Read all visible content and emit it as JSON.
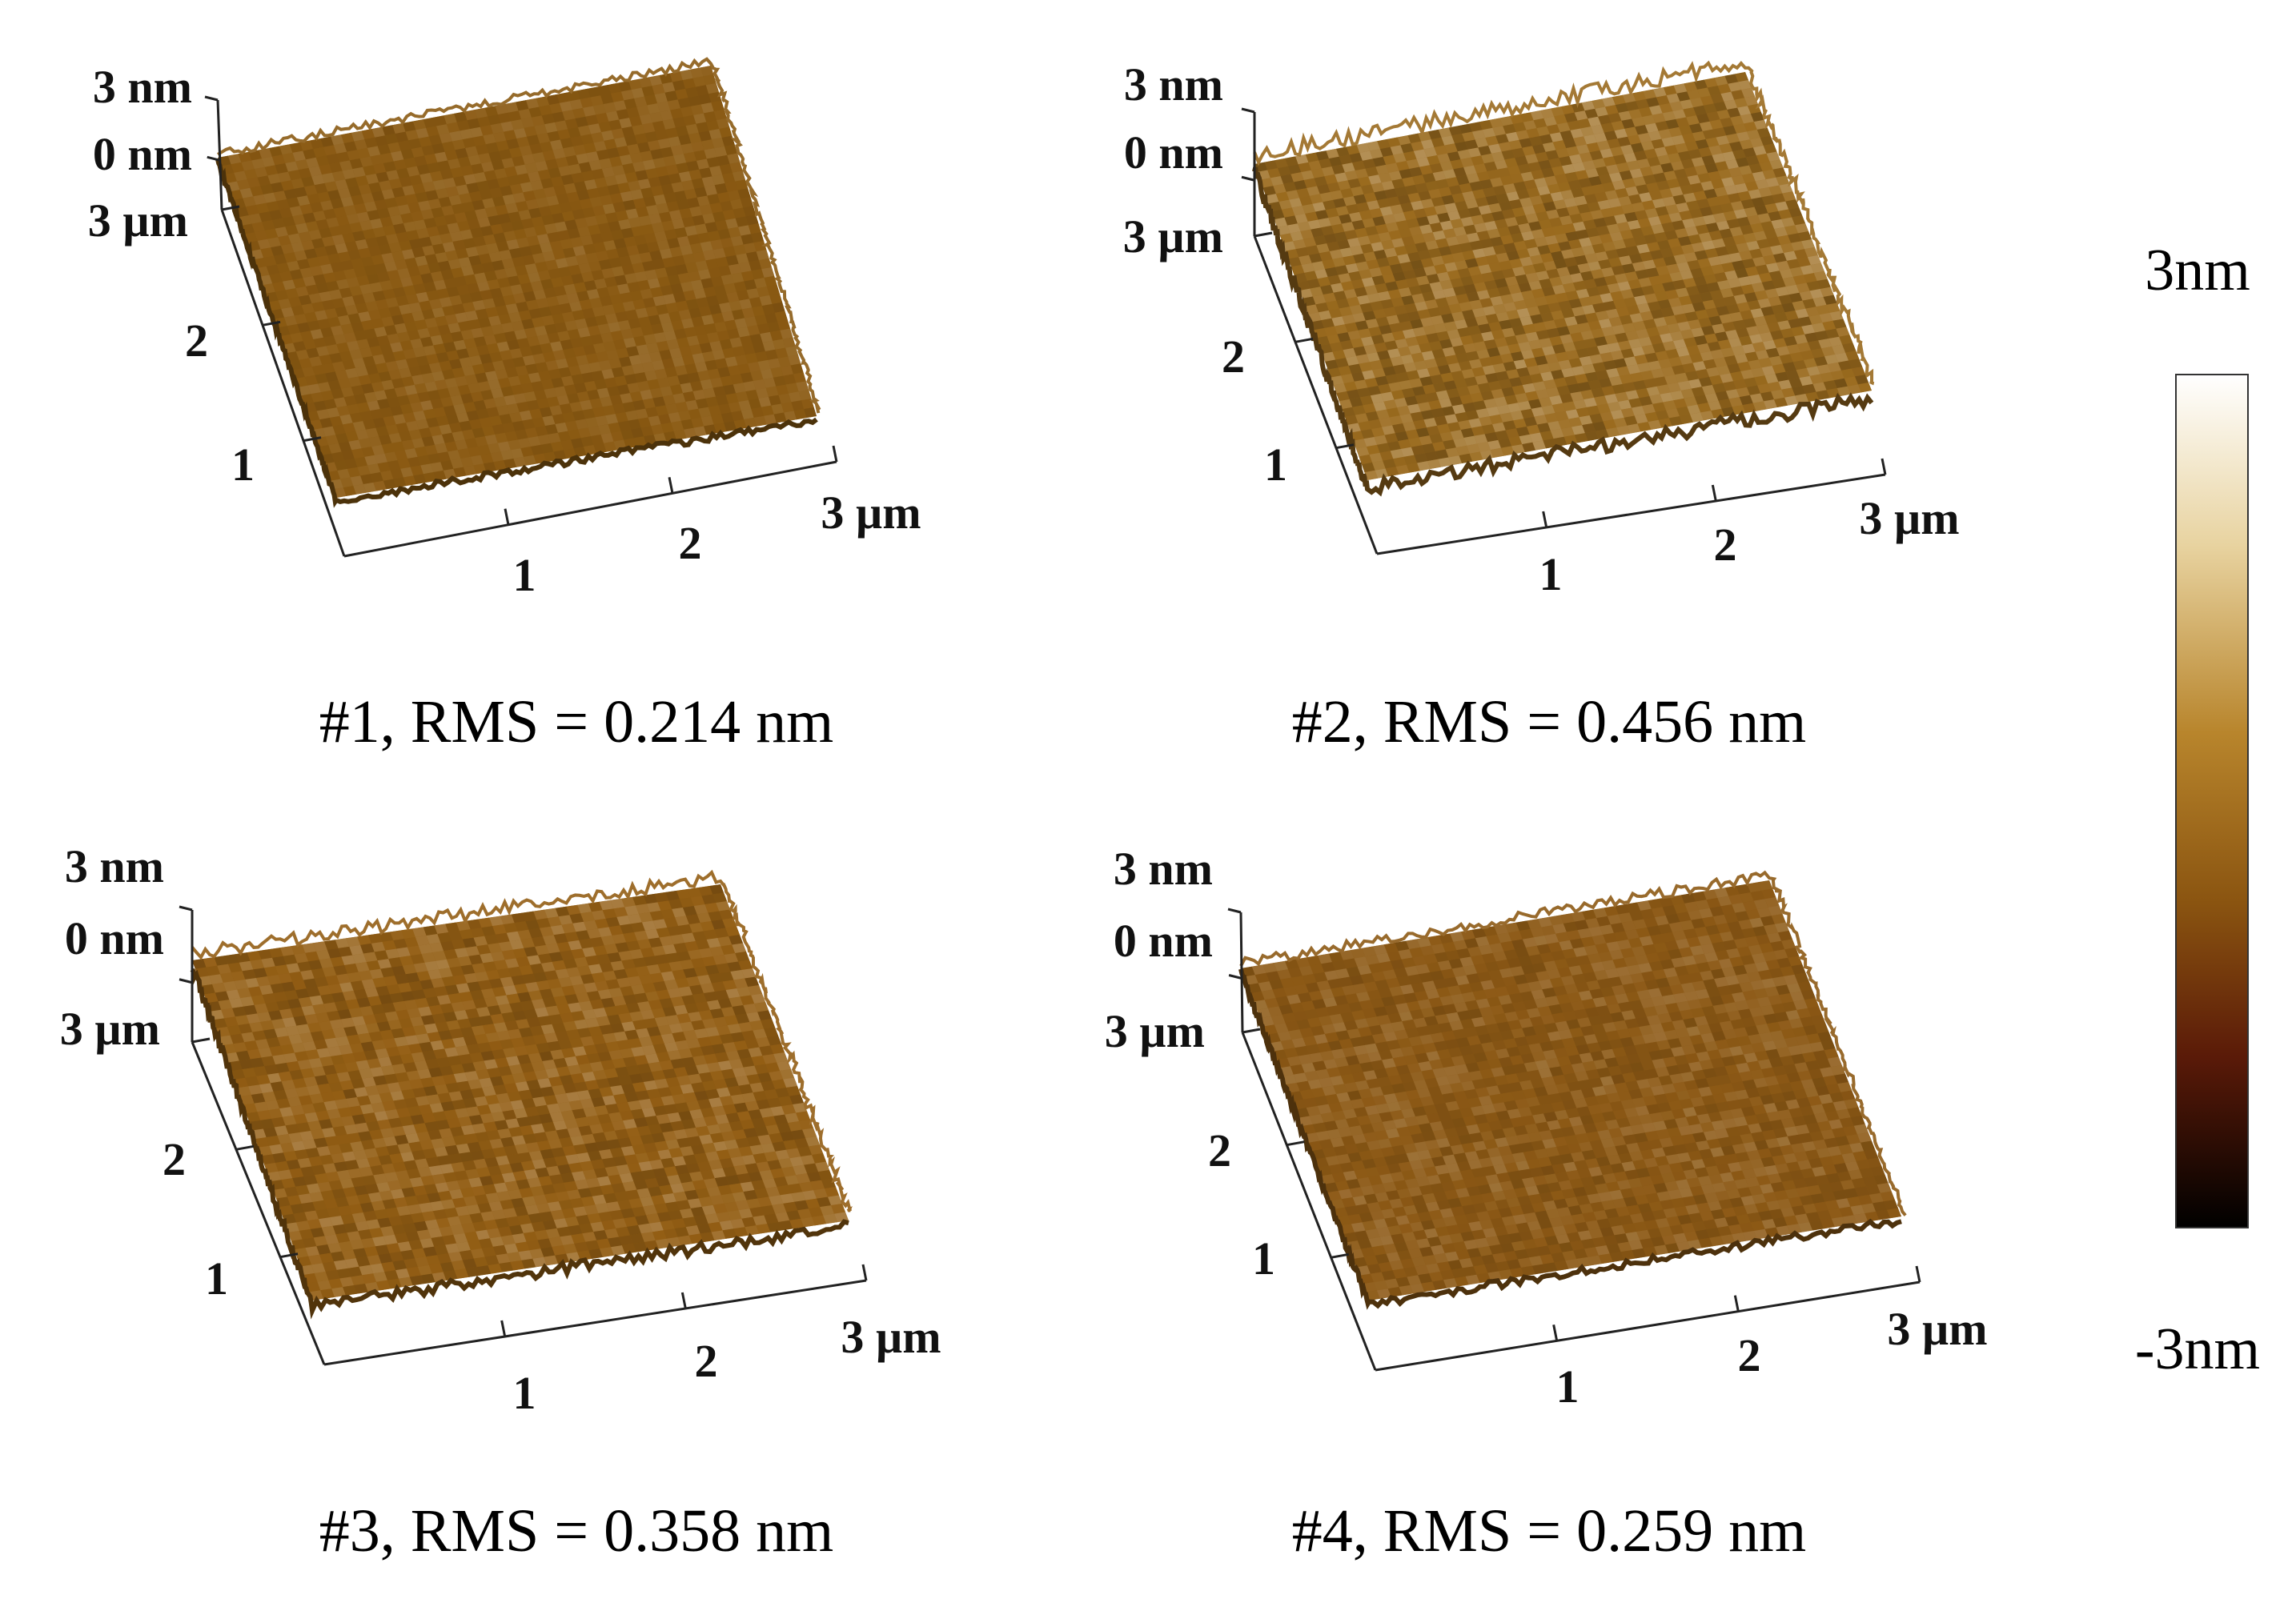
{
  "panels": [
    {
      "id": "p1",
      "caption": "#1, RMS = 0.214 nm",
      "z_labels": [
        "3 nm",
        "0 nm"
      ],
      "y_labels": [
        "3 µm",
        "2",
        "1"
      ],
      "x_labels": [
        "1",
        "2",
        "3 µm"
      ],
      "rms_nm": 0.214,
      "base_color": "#8a5a13"
    },
    {
      "id": "p2",
      "caption": "#2, RMS = 0.456 nm",
      "z_labels": [
        "3 nm",
        "0 nm"
      ],
      "y_labels": [
        "3 µm",
        "2",
        "1"
      ],
      "x_labels": [
        "1",
        "2",
        "3 µm"
      ],
      "rms_nm": 0.456,
      "base_color": "#9a6a1e"
    },
    {
      "id": "p3",
      "caption": "#3, RMS = 0.358 nm",
      "z_labels": [
        "3 nm",
        "0 nm"
      ],
      "y_labels": [
        "3 µm",
        "2",
        "1"
      ],
      "x_labels": [
        "1",
        "2",
        "3 µm"
      ],
      "rms_nm": 0.358,
      "base_color": "#935e14"
    },
    {
      "id": "p4",
      "caption": "#4, RMS = 0.259 nm",
      "z_labels": [
        "3 nm",
        "0 nm"
      ],
      "y_labels": [
        "3 µm",
        "2",
        "1"
      ],
      "x_labels": [
        "1",
        "2",
        "3 µm"
      ],
      "rms_nm": 0.259,
      "base_color": "#8c5915"
    }
  ],
  "colorbar": {
    "max_label": "3nm",
    "min_label": "-3nm",
    "colors": [
      "#ffffff",
      "#e8d3a0",
      "#b8852c",
      "#8a5410",
      "#5a1a08",
      "#000000"
    ]
  }
}
